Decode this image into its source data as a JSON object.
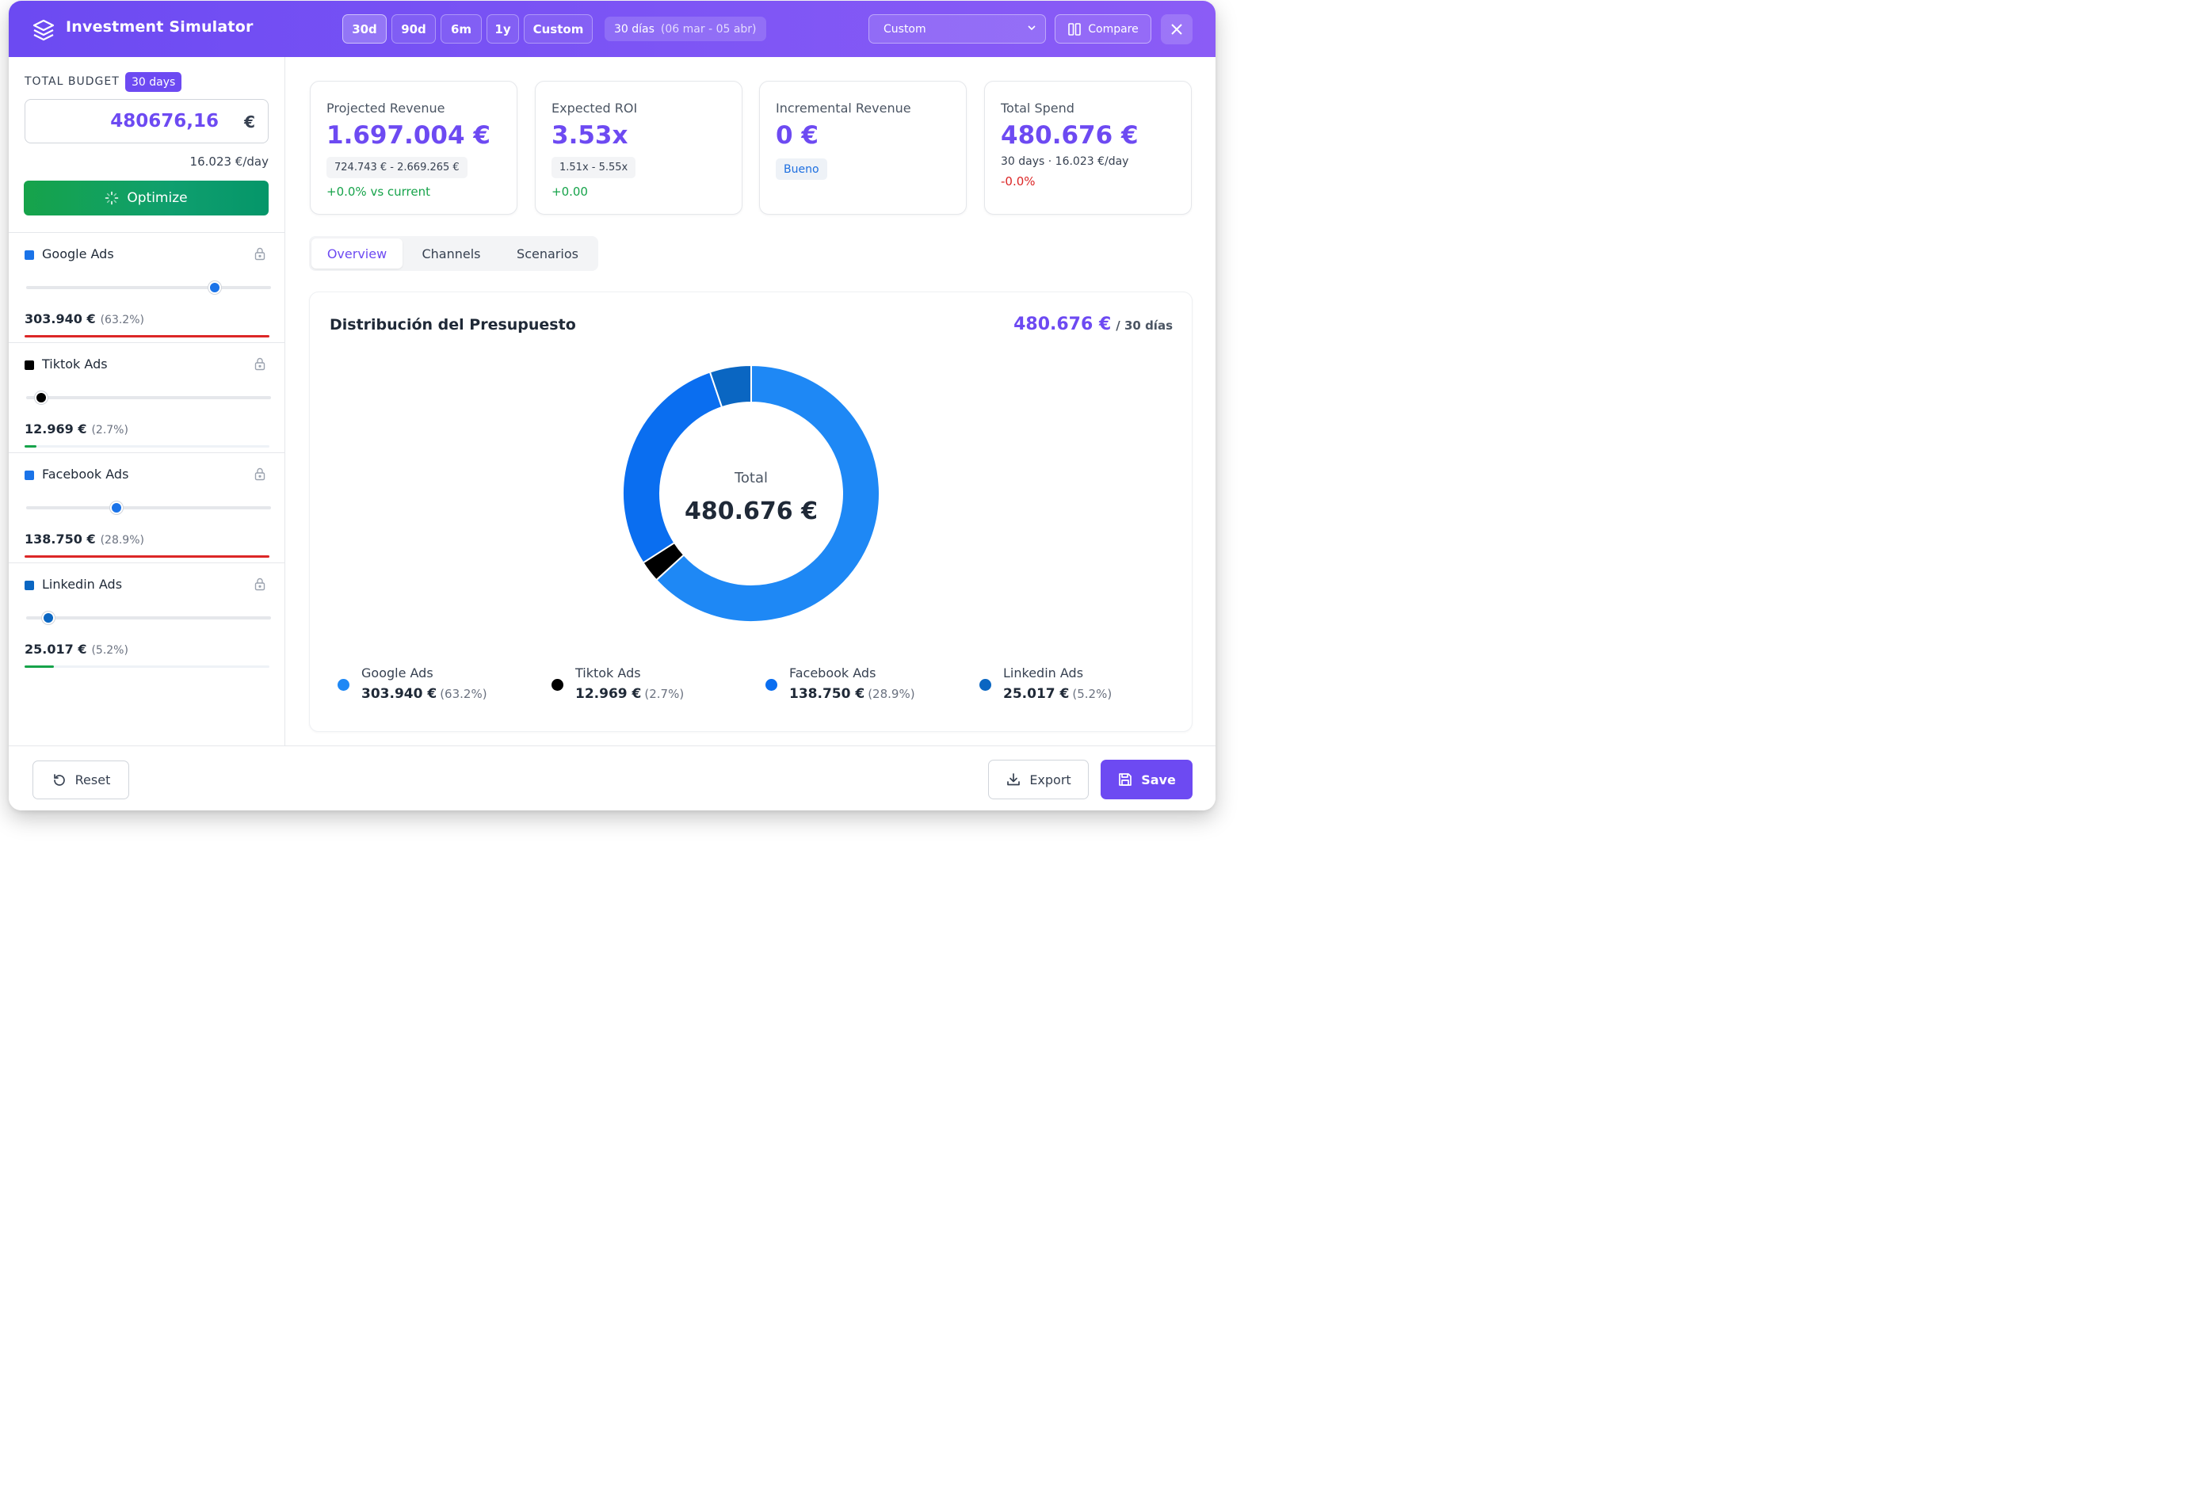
{
  "header": {
    "title": "Investment Simulator",
    "ranges": [
      "30d",
      "90d",
      "6m",
      "1y",
      "Custom"
    ],
    "active_range": "30d",
    "range_label": "30 días",
    "range_dates": "(06 mar - 05 abr)",
    "scenario_value": "Custom",
    "compare_label": "Compare"
  },
  "sidebar": {
    "budget_label": "TOTAL BUDGET",
    "budget_badge": "30 days",
    "budget_value": "480676,16",
    "budget_currency": "€",
    "per_day": "16.023 €/day",
    "optimize_label": "Optimize",
    "channels": [
      {
        "name": "Google Ads",
        "amount": "303.940 €",
        "pct": "(63.2%)",
        "color": "#1a73e8",
        "slider": 0.77,
        "bar_color": "#dc2626",
        "bar_fill": 1.0
      },
      {
        "name": "Tiktok Ads",
        "amount": "12.969 €",
        "pct": "(2.7%)",
        "color": "#000000",
        "slider": 0.06,
        "bar_color": "#16a34a",
        "bar_fill": 0.05
      },
      {
        "name": "Facebook Ads",
        "amount": "138.750 €",
        "pct": "(28.9%)",
        "color": "#1a73e8",
        "slider": 0.37,
        "bar_color": "#dc2626",
        "bar_fill": 1.0
      },
      {
        "name": "Linkedin Ads",
        "amount": "25.017 €",
        "pct": "(5.2%)",
        "color": "#0a66c2",
        "slider": 0.09,
        "bar_color": "#16a34a",
        "bar_fill": 0.12
      }
    ]
  },
  "kpis": {
    "projected": {
      "title": "Projected Revenue",
      "value": "1.697.004 €",
      "range": "724.743 € - 2.669.265 €",
      "delta": "+0.0% vs current"
    },
    "roi": {
      "title": "Expected ROI",
      "value": "3.53x",
      "range": "1.51x - 5.55x",
      "delta": "+0.00"
    },
    "incremental": {
      "title": "Incremental Revenue",
      "value": "0 €",
      "badge": "Bueno"
    },
    "spend": {
      "title": "Total Spend",
      "value": "480.676 €",
      "sub": "30 days · 16.023 €/day",
      "delta": "-0.0%"
    }
  },
  "tabs": [
    "Overview",
    "Channels",
    "Scenarios"
  ],
  "active_tab": "Overview",
  "chart": {
    "title": "Distribución del Presupuesto",
    "total_amount": "480.676 €",
    "total_days": "/ 30 días",
    "center_label": "Total",
    "center_value": "480.676 €"
  },
  "chart_data": {
    "type": "pie",
    "title": "Distribución del Presupuesto",
    "categories": [
      "Google Ads",
      "Tiktok Ads",
      "Facebook Ads",
      "Linkedin Ads"
    ],
    "values": [
      303940,
      12969,
      138750,
      25017
    ],
    "labels": [
      "303.940 €",
      "12.969 €",
      "138.750 €",
      "25.017 €"
    ],
    "percents": [
      "(63.2%)",
      "(2.7%)",
      "(28.9%)",
      "(5.2%)"
    ],
    "colors": [
      "#1e88f5",
      "#000000",
      "#0a6ef0",
      "#0a66c2"
    ]
  },
  "footer": {
    "reset_label": "Reset",
    "export_label": "Export",
    "save_label": "Save"
  }
}
